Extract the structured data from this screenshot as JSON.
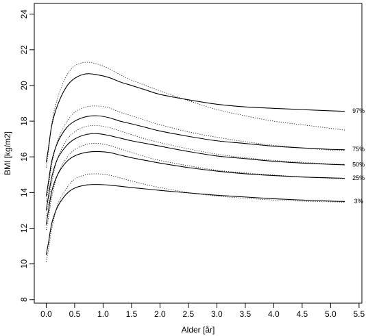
{
  "chart_data": {
    "type": "line",
    "xlabel": "Alder [år]",
    "ylabel": "BMI [kg/m2]",
    "xlim": [
      -0.21,
      5.55
    ],
    "ylim": [
      7.8,
      24.6
    ],
    "x_ticks": [
      {
        "value": 0.0,
        "label": "0.0"
      },
      {
        "value": 0.5,
        "label": "0.5"
      },
      {
        "value": 1.0,
        "label": "1.0"
      },
      {
        "value": 1.5,
        "label": "1.5"
      },
      {
        "value": 2.0,
        "label": "2.0"
      },
      {
        "value": 2.5,
        "label": "2.5"
      },
      {
        "value": 3.0,
        "label": "3.0"
      },
      {
        "value": 3.5,
        "label": "3.5"
      },
      {
        "value": 4.0,
        "label": "4.0"
      },
      {
        "value": 4.5,
        "label": "4.5"
      },
      {
        "value": 5.0,
        "label": "5.0"
      },
      {
        "value": 5.5,
        "label": "5.5"
      }
    ],
    "y_ticks": [
      {
        "value": 8,
        "label": "8"
      },
      {
        "value": 10,
        "label": "10"
      },
      {
        "value": 12,
        "label": "12"
      },
      {
        "value": 14,
        "label": "14"
      },
      {
        "value": 16,
        "label": "16"
      },
      {
        "value": 18,
        "label": "18"
      },
      {
        "value": 20,
        "label": "20"
      },
      {
        "value": 22,
        "label": "22"
      },
      {
        "value": 24,
        "label": "24"
      }
    ],
    "grid": false,
    "series": [
      {
        "label": "97%",
        "label_y": 18.55,
        "color": "#000000",
        "x": [
          0.0,
          0.04,
          0.1,
          0.2,
          0.35,
          0.5,
          0.7,
          0.9,
          1.1,
          1.3,
          1.5,
          1.75,
          2.0,
          2.5,
          3.0,
          3.5,
          4.0,
          4.5,
          5.0,
          5.25
        ],
        "solid": [
          15.7,
          16.5,
          17.8,
          18.9,
          19.9,
          20.4,
          20.65,
          20.6,
          20.45,
          20.2,
          20.0,
          19.75,
          19.5,
          19.2,
          18.95,
          18.8,
          18.72,
          18.65,
          18.58,
          18.55
        ],
        "dotted": [
          15.4,
          16.3,
          17.9,
          19.3,
          20.5,
          21.1,
          21.3,
          21.2,
          20.95,
          20.6,
          20.3,
          20.0,
          19.7,
          19.15,
          18.65,
          18.3,
          18.0,
          17.8,
          17.6,
          17.5
        ]
      },
      {
        "label": "75%",
        "label_y": 16.4,
        "color": "#000000",
        "x": [
          0.0,
          0.04,
          0.1,
          0.2,
          0.35,
          0.5,
          0.7,
          0.9,
          1.1,
          1.3,
          1.5,
          1.75,
          2.0,
          2.5,
          3.0,
          3.5,
          4.0,
          4.5,
          5.0,
          5.25
        ],
        "solid": [
          13.8,
          14.6,
          15.8,
          16.8,
          17.6,
          18.0,
          18.25,
          18.3,
          18.2,
          18.0,
          17.85,
          17.65,
          17.45,
          17.15,
          16.9,
          16.75,
          16.6,
          16.5,
          16.42,
          16.4
        ],
        "dotted": [
          13.5,
          14.3,
          15.6,
          16.9,
          17.9,
          18.5,
          18.8,
          18.85,
          18.75,
          18.5,
          18.3,
          18.05,
          17.8,
          17.4,
          17.1,
          16.85,
          16.65,
          16.5,
          16.38,
          16.35
        ]
      },
      {
        "label": "50%",
        "label_y": 15.55,
        "color": "#000000",
        "x": [
          0.0,
          0.04,
          0.1,
          0.2,
          0.35,
          0.5,
          0.7,
          0.9,
          1.1,
          1.3,
          1.5,
          1.75,
          2.0,
          2.5,
          3.0,
          3.5,
          4.0,
          4.5,
          5.0,
          5.25
        ],
        "solid": [
          13.0,
          13.8,
          14.9,
          15.9,
          16.6,
          17.0,
          17.25,
          17.3,
          17.2,
          17.05,
          16.9,
          16.75,
          16.6,
          16.3,
          16.05,
          15.9,
          15.75,
          15.65,
          15.58,
          15.55
        ],
        "dotted": [
          12.7,
          13.4,
          14.6,
          15.9,
          16.9,
          17.4,
          17.7,
          17.75,
          17.65,
          17.45,
          17.25,
          17.0,
          16.8,
          16.45,
          16.15,
          15.95,
          15.8,
          15.7,
          15.6,
          15.58
        ]
      },
      {
        "label": "25%",
        "label_y": 14.8,
        "color": "#000000",
        "x": [
          0.0,
          0.04,
          0.1,
          0.2,
          0.35,
          0.5,
          0.7,
          0.9,
          1.1,
          1.3,
          1.5,
          1.75,
          2.0,
          2.5,
          3.0,
          3.5,
          4.0,
          4.5,
          5.0,
          5.25
        ],
        "solid": [
          12.2,
          13.0,
          14.1,
          15.0,
          15.7,
          16.05,
          16.25,
          16.3,
          16.25,
          16.1,
          15.95,
          15.8,
          15.65,
          15.4,
          15.2,
          15.05,
          14.95,
          14.87,
          14.82,
          14.8
        ],
        "dotted": [
          11.9,
          12.6,
          13.8,
          15.0,
          15.9,
          16.4,
          16.7,
          16.75,
          16.65,
          16.45,
          16.25,
          16.0,
          15.8,
          15.5,
          15.25,
          15.1,
          14.98,
          14.88,
          14.8,
          14.78
        ]
      },
      {
        "label": "3%",
        "label_y": 13.5,
        "color": "#000000",
        "x": [
          0.0,
          0.04,
          0.1,
          0.2,
          0.35,
          0.5,
          0.7,
          0.9,
          1.1,
          1.3,
          1.5,
          1.75,
          2.0,
          2.5,
          3.0,
          3.5,
          4.0,
          4.5,
          5.0,
          5.25
        ],
        "solid": [
          10.5,
          11.2,
          12.3,
          13.2,
          13.9,
          14.25,
          14.42,
          14.45,
          14.42,
          14.35,
          14.28,
          14.2,
          14.12,
          13.98,
          13.85,
          13.75,
          13.65,
          13.58,
          13.52,
          13.5
        ],
        "dotted": [
          10.1,
          10.8,
          12.0,
          13.3,
          14.2,
          14.75,
          15.0,
          15.05,
          14.98,
          14.82,
          14.65,
          14.45,
          14.28,
          14.0,
          13.8,
          13.68,
          13.58,
          13.52,
          13.48,
          13.46
        ]
      }
    ]
  }
}
